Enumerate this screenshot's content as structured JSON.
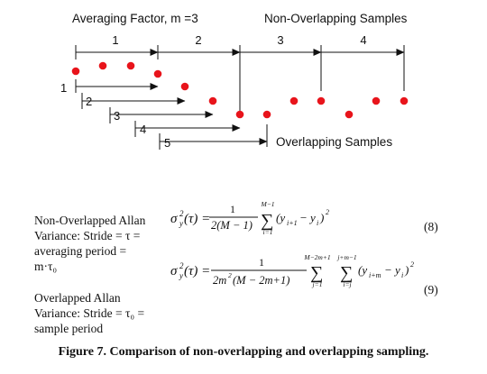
{
  "diagram": {
    "top_left_label": "Averaging Factor, m =3",
    "top_right_label": "Non-Overlapping Samples",
    "non_overlap_numbers": [
      "1",
      "2",
      "3",
      "4"
    ],
    "overlap_numbers": [
      "1",
      "2",
      "3",
      "4",
      "5"
    ],
    "overlap_label": "Overlapping Samples",
    "point_color": "#e8141b"
  },
  "left_text": {
    "non_overlapped": [
      "Non-Overlapped Allan",
      "Variance: Stride = τ =",
      "averaging period =",
      "m·τ₀"
    ],
    "overlapped": [
      "Overlapped Allan",
      "Variance: Stride = τ₀ =",
      "sample period"
    ]
  },
  "equations": {
    "eq8_number": "(8)",
    "eq9_number": "(9)"
  },
  "caption": "Figure 7.  Comparison of non-overlapping and overlapping sampling."
}
